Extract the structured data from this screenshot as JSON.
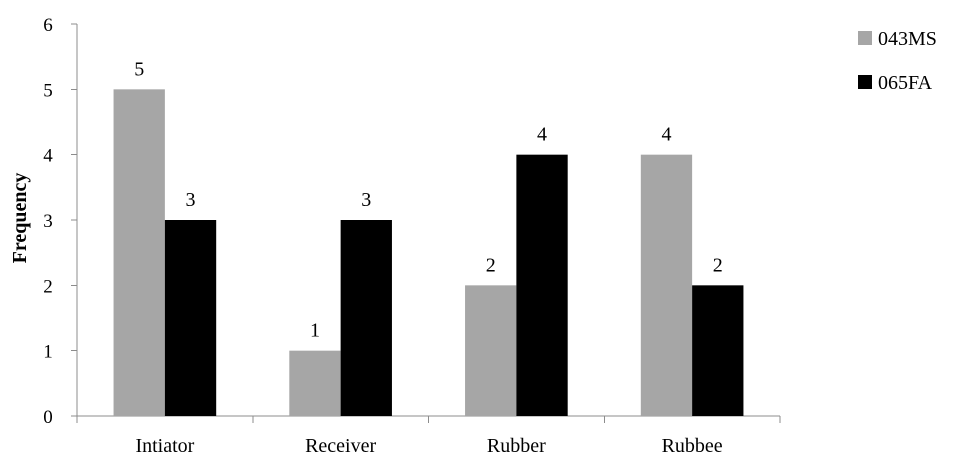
{
  "chart_data": {
    "type": "bar",
    "title": "",
    "xlabel": "",
    "ylabel": "Frequency",
    "ylim": [
      0,
      6
    ],
    "yticks": [
      0,
      1,
      2,
      3,
      4,
      5,
      6
    ],
    "grid": false,
    "legend_position": "top-right",
    "categories": [
      "Intiator",
      "Receiver",
      "Rubber",
      "Rubbee"
    ],
    "series": [
      {
        "name": "043MS",
        "color": "#a6a6a6",
        "values": [
          5,
          1,
          2,
          4
        ]
      },
      {
        "name": "065FA",
        "color": "#000000",
        "values": [
          3,
          3,
          4,
          2
        ]
      }
    ],
    "data_labels": true
  }
}
